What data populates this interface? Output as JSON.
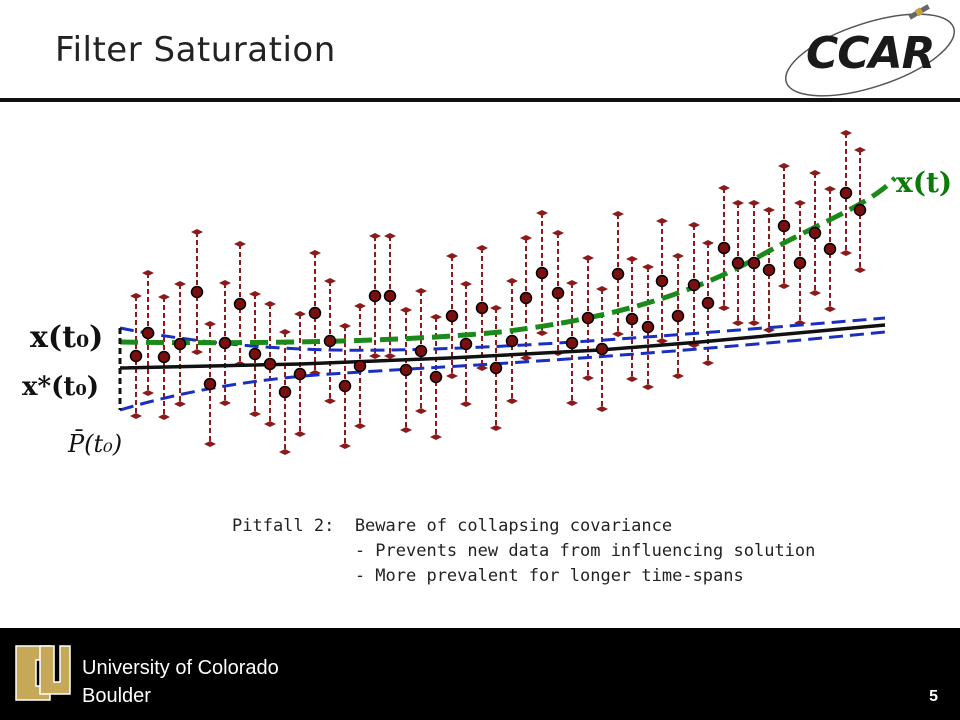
{
  "slide": {
    "title": "Filter Saturation",
    "logo_text": "CCAR",
    "page_number": "5"
  },
  "diagram": {
    "labels": {
      "x_t0": "x(t₀)",
      "x_star_t0": "x*(t₀)",
      "p_bar_t0": "P̄(t₀)",
      "x_t": "x(t)"
    },
    "colors": {
      "true_state": "#1b8a1b",
      "estimate": "#111111",
      "covariance_bound": "#1a2fbf",
      "measurement": "#7a0f0f",
      "error_bar": "#8b1a1a"
    }
  },
  "notes": {
    "line1": "Pitfall 2:  Beware of collapsing covariance",
    "line2": "            - Prevents new data from influencing solution",
    "line3": "            - More prevalent for longer time-spans"
  },
  "footer": {
    "university_line1": "University of Colorado",
    "university_line2": "Boulder"
  }
}
